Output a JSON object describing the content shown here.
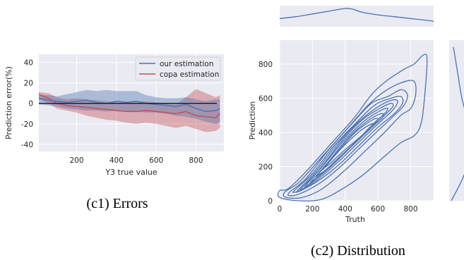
{
  "chart_data": [
    {
      "type": "line",
      "caption": "(c1) Errors",
      "xlabel": "Y3 true value",
      "ylabel": "Prediction error(%)",
      "xlim": [
        10,
        940
      ],
      "ylim": [
        -47,
        48
      ],
      "xticks": [
        200,
        400,
        600,
        800
      ],
      "yticks": [
        40,
        20,
        0,
        -20,
        -40
      ],
      "grid": true,
      "legend_position": "top-right",
      "reference_line": 0,
      "series": [
        {
          "name": "our estimation",
          "color": "#4C72B0",
          "x": [
            10,
            60,
            100,
            150,
            200,
            250,
            300,
            350,
            400,
            450,
            500,
            550,
            600,
            650,
            700,
            750,
            800,
            850,
            900,
            920
          ],
          "mean": [
            5,
            3,
            2,
            1,
            2,
            3,
            1,
            0,
            2,
            1,
            2,
            0,
            -1,
            -2,
            -3,
            -1,
            -5,
            -8,
            -7,
            -5
          ],
          "lower": [
            -1,
            -2,
            -3,
            -5,
            -6,
            -7,
            -7,
            -8,
            -7,
            -8,
            -8,
            -9,
            -9,
            -10,
            -12,
            -13,
            -15,
            -18,
            -20,
            -18
          ],
          "upper": [
            8,
            8,
            7,
            9,
            11,
            13,
            12,
            13,
            12,
            12,
            12,
            8,
            6,
            5,
            5,
            6,
            4,
            2,
            4,
            4
          ]
        },
        {
          "name": "copa estimation",
          "color": "#C44E52",
          "x": [
            10,
            60,
            100,
            150,
            200,
            250,
            300,
            350,
            400,
            450,
            500,
            550,
            600,
            650,
            700,
            750,
            800,
            850,
            900,
            920
          ],
          "mean": [
            9,
            5,
            0,
            -2,
            -3,
            -4,
            -5,
            -6,
            -7,
            -8,
            -8,
            -7,
            -8,
            -9,
            -10,
            -8,
            -12,
            -13,
            -14,
            -10
          ],
          "lower": [
            4,
            0,
            -5,
            -7,
            -9,
            -12,
            -14,
            -16,
            -17,
            -19,
            -20,
            -19,
            -20,
            -22,
            -24,
            -22,
            -25,
            -28,
            -27,
            -24
          ],
          "upper": [
            11,
            10,
            6,
            4,
            5,
            4,
            3,
            2,
            1,
            1,
            2,
            2,
            1,
            0,
            -1,
            6,
            14,
            10,
            6,
            8
          ]
        }
      ]
    },
    {
      "type": "contour",
      "caption": "(c2) Distribution",
      "xlabel": "Truth",
      "ylabel": "Prediction",
      "xlim": [
        0,
        940
      ],
      "ylim": [
        0,
        940
      ],
      "xticks": [
        0,
        200,
        400,
        600,
        800
      ],
      "yticks": [
        0,
        200,
        400,
        600,
        800
      ],
      "grid": true,
      "color": "#4C72B0",
      "marginal_x_density": {
        "x": [
          0,
          100,
          200,
          300,
          400,
          450,
          500,
          600,
          700,
          800,
          900,
          940
        ],
        "density": [
          0.45,
          0.55,
          0.7,
          0.85,
          1.0,
          0.95,
          0.8,
          0.65,
          0.55,
          0.45,
          0.35,
          0.3
        ]
      },
      "marginal_y_density": {
        "y": [
          0,
          150,
          300,
          450,
          600,
          750,
          900
        ],
        "density": [
          0.1,
          0.7,
          1.0,
          0.9,
          0.6,
          0.4,
          0.2
        ]
      },
      "contour_levels": [
        {
          "level": 1,
          "points": [
            [
              0,
              60
            ],
            [
              50,
              70
            ],
            [
              150,
              160
            ],
            [
              300,
              320
            ],
            [
              450,
              480
            ],
            [
              560,
              620
            ],
            [
              650,
              700
            ],
            [
              760,
              770
            ],
            [
              820,
              800
            ],
            [
              880,
              855
            ],
            [
              900,
              820
            ],
            [
              880,
              560
            ],
            [
              860,
              440
            ],
            [
              820,
              380
            ],
            [
              740,
              340
            ],
            [
              640,
              260
            ],
            [
              520,
              160
            ],
            [
              400,
              80
            ],
            [
              260,
              10
            ],
            [
              120,
              0
            ],
            [
              0,
              20
            ]
          ]
        },
        {
          "level": 2,
          "points": [
            [
              30,
              50
            ],
            [
              120,
              110
            ],
            [
              260,
              260
            ],
            [
              420,
              430
            ],
            [
              540,
              560
            ],
            [
              640,
              640
            ],
            [
              740,
              690
            ],
            [
              820,
              700
            ],
            [
              830,
              620
            ],
            [
              800,
              540
            ],
            [
              740,
              500
            ],
            [
              640,
              400
            ],
            [
              520,
              290
            ],
            [
              400,
              180
            ],
            [
              260,
              70
            ],
            [
              140,
              20
            ],
            [
              40,
              20
            ]
          ]
        },
        {
          "level": 3,
          "points": [
            [
              60,
              50
            ],
            [
              160,
              130
            ],
            [
              300,
              300
            ],
            [
              440,
              450
            ],
            [
              560,
              570
            ],
            [
              660,
              610
            ],
            [
              740,
              650
            ],
            [
              780,
              620
            ],
            [
              760,
              560
            ],
            [
              700,
              500
            ],
            [
              600,
              410
            ],
            [
              480,
              300
            ],
            [
              360,
              190
            ],
            [
              240,
              100
            ],
            [
              120,
              40
            ],
            [
              60,
              30
            ]
          ]
        },
        {
          "level": 4,
          "points": [
            [
              90,
              60
            ],
            [
              200,
              160
            ],
            [
              330,
              320
            ],
            [
              460,
              450
            ],
            [
              580,
              560
            ],
            [
              680,
              600
            ],
            [
              740,
              610
            ],
            [
              750,
              570
            ],
            [
              700,
              510
            ],
            [
              600,
              430
            ],
            [
              480,
              320
            ],
            [
              360,
              210
            ],
            [
              240,
              120
            ],
            [
              130,
              60
            ],
            [
              90,
              50
            ]
          ]
        },
        {
          "level": 5,
          "points": [
            [
              110,
              60
            ],
            [
              220,
              170
            ],
            [
              350,
              330
            ],
            [
              480,
              460
            ],
            [
              600,
              550
            ],
            [
              690,
              590
            ],
            [
              720,
              580
            ],
            [
              690,
              530
            ],
            [
              600,
              450
            ],
            [
              480,
              340
            ],
            [
              360,
              230
            ],
            [
              240,
              130
            ],
            [
              150,
              70
            ],
            [
              110,
              55
            ]
          ]
        },
        {
          "level": 6,
          "points": [
            [
              130,
              70
            ],
            [
              240,
              180
            ],
            [
              370,
              340
            ],
            [
              500,
              470
            ],
            [
              610,
              540
            ],
            [
              680,
              570
            ],
            [
              690,
              550
            ],
            [
              640,
              500
            ],
            [
              540,
              410
            ],
            [
              420,
              300
            ],
            [
              300,
              190
            ],
            [
              200,
              110
            ],
            [
              140,
              70
            ]
          ]
        },
        {
          "level": 7,
          "points": [
            [
              160,
              90
            ],
            [
              260,
              200
            ],
            [
              390,
              350
            ],
            [
              520,
              470
            ],
            [
              620,
              530
            ],
            [
              660,
              540
            ],
            [
              640,
              510
            ],
            [
              560,
              440
            ],
            [
              440,
              320
            ],
            [
              320,
              210
            ],
            [
              220,
              130
            ],
            [
              170,
              90
            ]
          ]
        },
        {
          "level": 8,
          "points": [
            [
              190,
              110
            ],
            [
              290,
              220
            ],
            [
              420,
              370
            ],
            [
              540,
              470
            ],
            [
              620,
              510
            ],
            [
              630,
              490
            ],
            [
              560,
              430
            ],
            [
              450,
              330
            ],
            [
              340,
              230
            ],
            [
              250,
              150
            ],
            [
              200,
              115
            ]
          ]
        },
        {
          "level": 9,
          "points": [
            [
              230,
              150
            ],
            [
              330,
              260
            ],
            [
              450,
              390
            ],
            [
              560,
              470
            ],
            [
              600,
              480
            ],
            [
              570,
              440
            ],
            [
              470,
              350
            ],
            [
              370,
              260
            ],
            [
              280,
              180
            ],
            [
              235,
              150
            ]
          ]
        },
        {
          "level": 10,
          "points": [
            [
              270,
              190
            ],
            [
              370,
              300
            ],
            [
              480,
              400
            ],
            [
              560,
              450
            ],
            [
              570,
              440
            ],
            [
              500,
              380
            ],
            [
              400,
              300
            ],
            [
              310,
              220
            ],
            [
              275,
              195
            ]
          ]
        }
      ]
    }
  ]
}
